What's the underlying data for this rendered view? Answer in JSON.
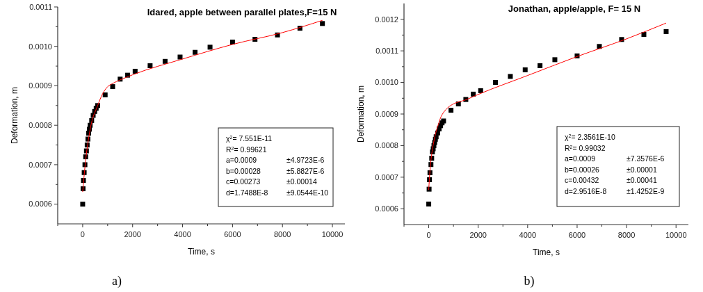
{
  "chart_data": [
    {
      "type": "scatter",
      "title": "Idared, apple between parallel plates,F=15 N",
      "xlabel": "Time, s",
      "ylabel": "Deformation, m",
      "xlim": [
        -1000,
        10500
      ],
      "ylim": [
        0.00055,
        0.0011
      ],
      "xticks": [
        {
          "value": -1000,
          "label": null
        },
        0,
        {
          "value": 1000,
          "label": null
        },
        2000,
        {
          "value": 3000,
          "label": null
        },
        4000,
        {
          "value": 5000,
          "label": null
        },
        6000,
        {
          "value": 7000,
          "label": null
        },
        8000,
        {
          "value": 9000,
          "label": null
        },
        10000
      ],
      "yticks": [
        0.0006,
        {
          "value": 0.00065,
          "label": null
        },
        0.0007,
        {
          "value": 0.00075,
          "label": null
        },
        0.0008,
        {
          "value": 0.00085,
          "label": null
        },
        0.0009,
        {
          "value": 0.00095,
          "label": null
        },
        {
          "value": 0.001,
          "label": "0.0010"
        },
        {
          "value": 0.00105,
          "label": null
        },
        0.0011
      ],
      "grid": false,
      "series": [
        {
          "marker": "square",
          "color": "#000000",
          "x": [
            0,
            15,
            30,
            60,
            90,
            120,
            150,
            180,
            210,
            240,
            270,
            300,
            360,
            420,
            480,
            540,
            600,
            900,
            1200,
            1500,
            1800,
            2100,
            2700,
            3300,
            3900,
            4500,
            5100,
            6000,
            6900,
            7800,
            8700,
            9600
          ],
          "values": [
            0.0006,
            0.000639,
            0.00066,
            0.00068,
            0.0007,
            0.00072,
            0.000735,
            0.00075,
            0.000765,
            0.00078,
            0.00079,
            0.0008,
            0.000812,
            0.000825,
            0.000835,
            0.000843,
            0.00085,
            0.000877,
            0.000898,
            0.000917,
            0.000927,
            0.000937,
            0.000951,
            0.000962,
            0.000973,
            0.000985,
            0.000998,
            0.001011,
            0.001018,
            0.001029,
            0.001046,
            0.001058
          ]
        },
        {
          "type": "line",
          "marker": "none",
          "color": "#ff0000",
          "x": [
            0,
            100,
            300,
            600,
            800,
            1000,
            1200,
            1500,
            2000,
            4000,
            6000,
            8000,
            9600
          ],
          "values": [
            0.000631,
            0.0007,
            0.00079,
            0.00085,
            0.00088,
            0.000898,
            0.000906,
            0.000915,
            0.000928,
            0.000968,
            0.001005,
            0.001035,
            0.001066
          ]
        }
      ],
      "annotations": [
        "χ$^{2}$= 7.551E-11",
        "R$^{2}$=  0.99621",
        "a=0.0009",
        "±4.9723E-6",
        "b=0.00028",
        "±5.8827E-6",
        "c=0.00273",
        "±0.00014",
        "d=1.7488E-8",
        "±9.0544E-10",
        "a)"
      ]
    },
    {
      "type": "scatter",
      "title": "Jonathan, apple/apple, F= 15 N",
      "xlabel": "Time, s",
      "ylabel": "Deformation, m",
      "xlim": [
        -1000,
        10500
      ],
      "ylim": [
        0.00055,
        0.00125
      ],
      "xticks": [
        {
          "value": -1000,
          "label": null
        },
        0,
        {
          "value": 1000,
          "label": null
        },
        2000,
        {
          "value": 3000,
          "label": null
        },
        4000,
        {
          "value": 5000,
          "label": null
        },
        6000,
        {
          "value": 7000,
          "label": null
        },
        8000,
        {
          "value": 9000,
          "label": null
        },
        10000
      ],
      "yticks": [
        0.0006,
        {
          "value": 0.00065,
          "label": null
        },
        0.0007,
        {
          "value": 0.00075,
          "label": null
        },
        0.0008,
        {
          "value": 0.00085,
          "label": null
        },
        0.0009,
        {
          "value": 0.00095,
          "label": null
        },
        {
          "value": 0.001,
          "label": "0.0010"
        },
        {
          "value": 0.00105,
          "label": null
        },
        0.0011,
        {
          "value": 0.00115,
          "label": null
        },
        0.0012
      ],
      "grid": false,
      "series": [
        {
          "marker": "square",
          "color": "#000000",
          "x": [
            0,
            15,
            30,
            50,
            90,
            120,
            150,
            180,
            210,
            240,
            270,
            300,
            360,
            420,
            480,
            540,
            600,
            900,
            1200,
            1500,
            1800,
            2100,
            2700,
            3300,
            3900,
            4500,
            5100,
            6000,
            6900,
            7800,
            8700,
            9600
          ],
          "values": [
            0.000615,
            0.000662,
            0.000692,
            0.000714,
            0.00074,
            0.00076,
            0.00078,
            0.00079,
            0.0008,
            0.00081,
            0.00082,
            0.000828,
            0.00084,
            0.000853,
            0.000863,
            0.000872,
            0.000878,
            0.000912,
            0.000932,
            0.000946,
            0.000963,
            0.000974,
            0.001,
            0.001019,
            0.00104,
            0.001053,
            0.001072,
            0.001084,
            0.001114,
            0.001136,
            0.001152,
            0.001161
          ]
        },
        {
          "type": "line",
          "marker": "none",
          "color": "#ff0000",
          "x": [
            0,
            50,
            100,
            200,
            300,
            400,
            500,
            600,
            800,
            1000,
            1500,
            2000,
            4000,
            6000,
            8000,
            9600
          ],
          "values": [
            0.00066,
            0.00072,
            0.00076,
            0.00081,
            0.000845,
            0.00087,
            0.000892,
            0.000905,
            0.000922,
            0.000932,
            0.000945,
            0.000962,
            0.001022,
            0.001082,
            0.001138,
            0.001188
          ]
        }
      ],
      "annotations": [
        "χ$^{2}$= 2.3561E-10",
        "R$^{2}$=  0.99032",
        "a=0.0009",
        "±7.3576E-6",
        "b=0.00026",
        "±0.00001",
        "c=0.00432",
        "±0.00041",
        "d=2.9516E-8",
        "±1.4252E-9",
        "b)"
      ]
    }
  ]
}
